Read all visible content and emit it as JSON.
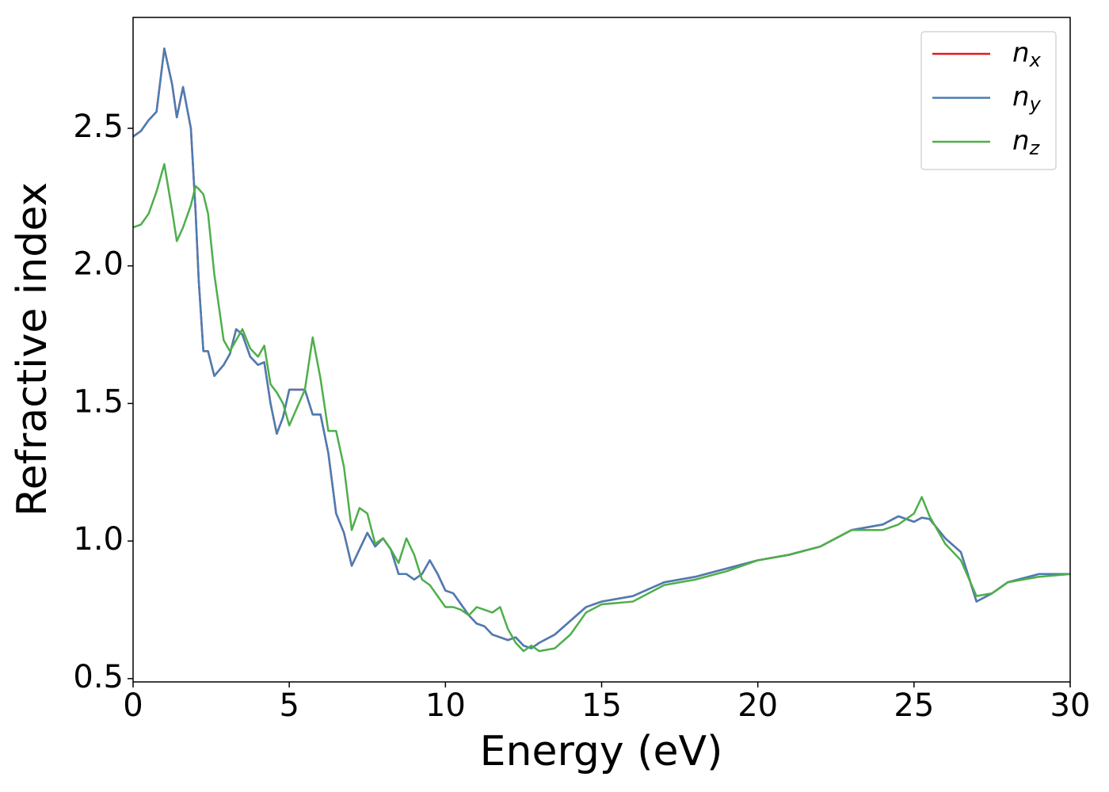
{
  "chart_data": {
    "type": "line",
    "xlabel": "Energy (eV)",
    "ylabel": "Refractive index",
    "x": [
      0,
      0.25,
      0.5,
      0.75,
      1,
      1.25,
      1.4,
      1.6,
      1.85,
      2,
      2.1,
      2.25,
      2.4,
      2.6,
      2.9,
      3.1,
      3.3,
      3.5,
      3.75,
      4,
      4.2,
      4.4,
      4.6,
      4.8,
      5,
      5.5,
      5.75,
      6,
      6.25,
      6.5,
      6.75,
      7,
      7.25,
      7.5,
      7.75,
      8,
      8.25,
      8.5,
      8.75,
      9,
      9.25,
      9.5,
      9.75,
      10,
      10.25,
      10.5,
      10.75,
      11,
      11.25,
      11.5,
      11.75,
      12,
      12.25,
      12.5,
      12.75,
      13,
      13.5,
      14,
      14.5,
      15,
      16,
      17,
      18,
      19,
      20,
      21,
      22,
      23,
      24,
      24.5,
      25,
      25.25,
      25.5,
      26,
      26.5,
      27,
      27.5,
      28,
      29,
      30
    ],
    "series": [
      {
        "name": "nx",
        "color": "#e41a1c",
        "values": [
          2.47,
          2.49,
          2.53,
          2.56,
          2.79,
          2.66,
          2.54,
          2.65,
          2.5,
          2.2,
          1.95,
          1.69,
          1.69,
          1.6,
          1.64,
          1.68,
          1.77,
          1.75,
          1.67,
          1.64,
          1.65,
          1.5,
          1.39,
          1.45,
          1.55,
          1.55,
          1.46,
          1.46,
          1.32,
          1.1,
          1.03,
          0.91,
          0.97,
          1.03,
          0.98,
          1.01,
          0.97,
          0.88,
          0.88,
          0.86,
          0.88,
          0.93,
          0.88,
          0.82,
          0.81,
          0.77,
          0.73,
          0.7,
          0.69,
          0.66,
          0.65,
          0.64,
          0.65,
          0.62,
          0.61,
          0.63,
          0.66,
          0.71,
          0.76,
          0.78,
          0.8,
          0.85,
          0.87,
          0.9,
          0.93,
          0.95,
          0.98,
          1.04,
          1.06,
          1.09,
          1.07,
          1.085,
          1.08,
          1.01,
          0.96,
          0.78,
          0.81,
          0.85,
          0.88,
          0.88
        ]
      },
      {
        "name": "ny",
        "color": "#4a7db5",
        "values": [
          2.47,
          2.49,
          2.53,
          2.56,
          2.79,
          2.66,
          2.54,
          2.65,
          2.5,
          2.2,
          1.95,
          1.69,
          1.69,
          1.6,
          1.64,
          1.68,
          1.77,
          1.75,
          1.67,
          1.64,
          1.65,
          1.5,
          1.39,
          1.45,
          1.55,
          1.55,
          1.46,
          1.46,
          1.32,
          1.1,
          1.03,
          0.91,
          0.97,
          1.03,
          0.98,
          1.01,
          0.97,
          0.88,
          0.88,
          0.86,
          0.88,
          0.93,
          0.88,
          0.82,
          0.81,
          0.77,
          0.73,
          0.7,
          0.69,
          0.66,
          0.65,
          0.64,
          0.65,
          0.62,
          0.61,
          0.63,
          0.66,
          0.71,
          0.76,
          0.78,
          0.8,
          0.85,
          0.87,
          0.9,
          0.93,
          0.95,
          0.98,
          1.04,
          1.06,
          1.09,
          1.07,
          1.085,
          1.08,
          1.01,
          0.96,
          0.78,
          0.81,
          0.85,
          0.88,
          0.88
        ]
      },
      {
        "name": "nz",
        "color": "#4daf4a",
        "values": [
          2.14,
          2.15,
          2.19,
          2.27,
          2.37,
          2.2,
          2.09,
          2.14,
          2.22,
          2.29,
          2.28,
          2.26,
          2.19,
          1.97,
          1.73,
          1.69,
          1.73,
          1.77,
          1.7,
          1.67,
          1.71,
          1.57,
          1.54,
          1.5,
          1.42,
          1.55,
          1.74,
          1.59,
          1.4,
          1.4,
          1.27,
          1.04,
          1.12,
          1.1,
          0.99,
          1.01,
          0.97,
          0.92,
          1.01,
          0.95,
          0.86,
          0.84,
          0.8,
          0.76,
          0.76,
          0.75,
          0.73,
          0.76,
          0.75,
          0.74,
          0.76,
          0.68,
          0.63,
          0.6,
          0.62,
          0.6,
          0.61,
          0.66,
          0.74,
          0.77,
          0.78,
          0.84,
          0.86,
          0.89,
          0.93,
          0.95,
          0.98,
          1.04,
          1.04,
          1.06,
          1.1,
          1.16,
          1.09,
          0.99,
          0.93,
          0.8,
          0.81,
          0.85,
          0.87,
          0.88
        ]
      }
    ],
    "xlim": [
      0,
      30
    ],
    "xticks": [
      0,
      5,
      10,
      15,
      20,
      25,
      30
    ],
    "ylim": [
      0.488,
      2.903
    ],
    "yticks": [
      {
        "value": 0.5,
        "label": "0.5"
      },
      {
        "value": 1.0,
        "label": "1.0"
      },
      {
        "value": 1.5,
        "label": "1.5"
      },
      {
        "value": 2.0,
        "label": "2.0"
      },
      2.5
    ],
    "grid": false,
    "legend": "upper right"
  }
}
